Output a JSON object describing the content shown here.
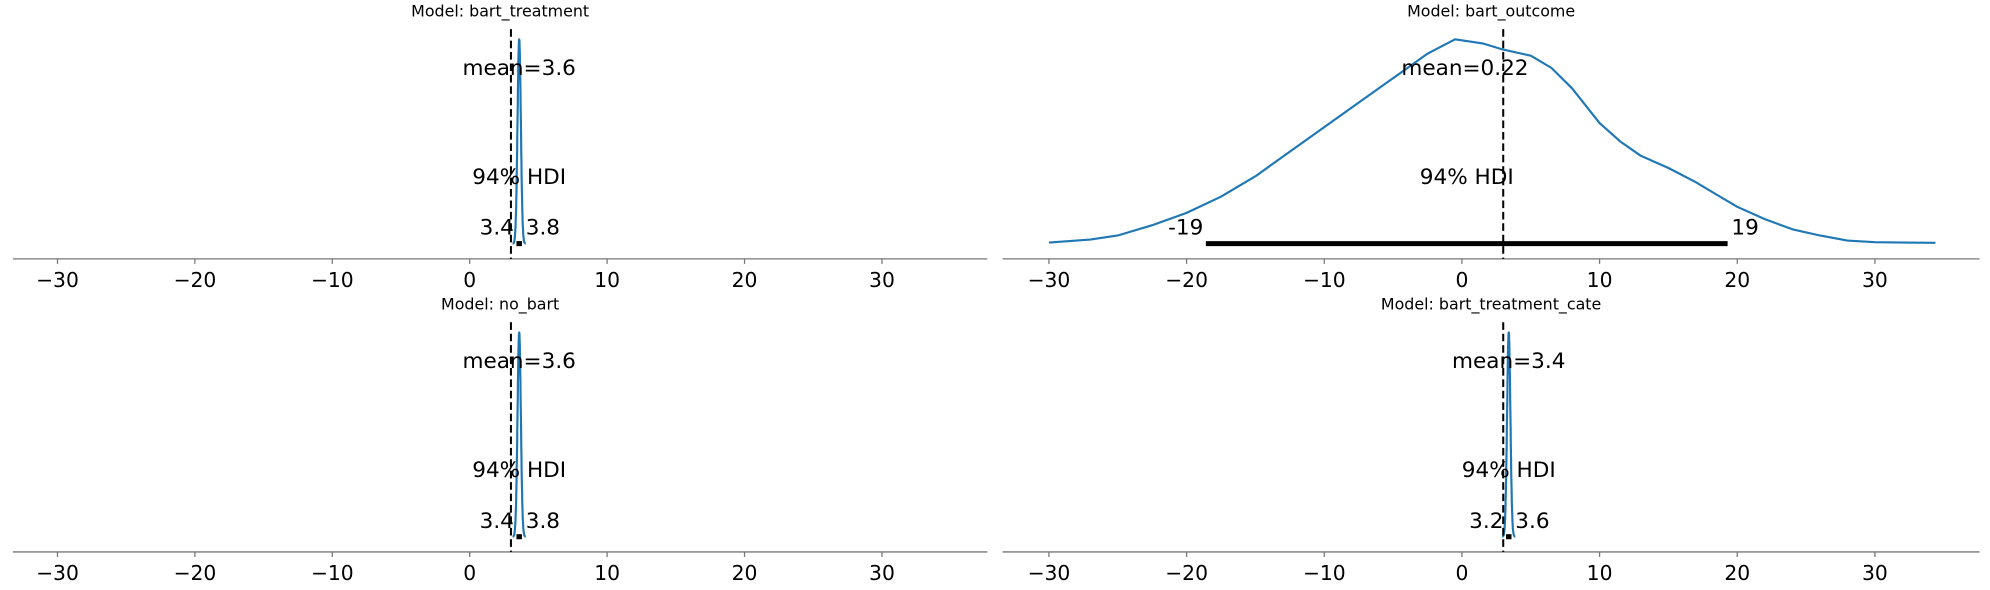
{
  "chart_data": [
    {
      "type": "area",
      "title": "Model: bart_treatment",
      "mean_label": "mean=3.6",
      "hdi_label": "94% HDI",
      "hdi": [
        3.4,
        3.8
      ],
      "hdi_labels": [
        "3.4",
        "3.8"
      ],
      "mean": 3.6,
      "ref_val": 3,
      "kde": {
        "center": 3.6,
        "sd": 0.12
      },
      "xlim": [
        -33,
        38
      ],
      "xticks": [
        -30,
        -20,
        -10,
        0,
        10,
        20,
        30
      ],
      "xtick_labels": [
        "−30",
        "−20",
        "−10",
        "0",
        "10",
        "20",
        "30"
      ],
      "color": "#1f77b4"
    },
    {
      "type": "area",
      "title": "Model: bart_outcome",
      "mean_label": "mean=0.22",
      "hdi_label": "94% HDI",
      "hdi": [
        -18.6,
        19.3
      ],
      "hdi_labels": [
        "-19",
        "19"
      ],
      "mean": 0.22,
      "ref_val": 3,
      "kde": {
        "points": [
          [
            -30,
            0.005
          ],
          [
            -27,
            0.02
          ],
          [
            -25,
            0.04
          ],
          [
            -22.5,
            0.09
          ],
          [
            -20,
            0.15
          ],
          [
            -17.5,
            0.23
          ],
          [
            -15,
            0.33
          ],
          [
            -12.5,
            0.45
          ],
          [
            -10,
            0.57
          ],
          [
            -7.5,
            0.69
          ],
          [
            -5,
            0.81
          ],
          [
            -2.5,
            0.93
          ],
          [
            -0.5,
            1.0
          ],
          [
            1.5,
            0.98
          ],
          [
            3,
            0.95
          ],
          [
            5,
            0.92
          ],
          [
            6.5,
            0.86
          ],
          [
            8,
            0.76
          ],
          [
            10,
            0.59
          ],
          [
            11.5,
            0.5
          ],
          [
            13,
            0.43
          ],
          [
            15,
            0.37
          ],
          [
            17,
            0.3
          ],
          [
            18.5,
            0.24
          ],
          [
            20,
            0.18
          ],
          [
            22,
            0.12
          ],
          [
            24,
            0.07
          ],
          [
            26,
            0.04
          ],
          [
            28,
            0.015
          ],
          [
            30,
            0.007
          ],
          [
            34.4,
            0.004
          ]
        ]
      },
      "xlim": [
        -33,
        38
      ],
      "xticks": [
        -30,
        -20,
        -10,
        0,
        10,
        20,
        30
      ],
      "xtick_labels": [
        "−30",
        "−20",
        "−10",
        "0",
        "10",
        "20",
        "30"
      ],
      "color": "#1f77b4"
    },
    {
      "type": "area",
      "title": "Model: no_bart",
      "mean_label": "mean=3.6",
      "hdi_label": "94% HDI",
      "hdi": [
        3.4,
        3.8
      ],
      "hdi_labels": [
        "3.4",
        "3.8"
      ],
      "mean": 3.6,
      "ref_val": 3,
      "kde": {
        "center": 3.6,
        "sd": 0.12
      },
      "xlim": [
        -33,
        38
      ],
      "xticks": [
        -30,
        -20,
        -10,
        0,
        10,
        20,
        30
      ],
      "xtick_labels": [
        "−30",
        "−20",
        "−10",
        "0",
        "10",
        "20",
        "30"
      ],
      "color": "#1f77b4"
    },
    {
      "type": "area",
      "title": "Model: bart_treatment_cate",
      "mean_label": "mean=3.4",
      "hdi_label": "94% HDI",
      "hdi": [
        3.2,
        3.6
      ],
      "hdi_labels": [
        "3.2",
        "3.6"
      ],
      "mean": 3.4,
      "ref_val": 3,
      "kde": {
        "center": 3.4,
        "sd": 0.12
      },
      "xlim": [
        -33,
        38
      ],
      "xticks": [
        -30,
        -20,
        -10,
        0,
        10,
        20,
        30
      ],
      "xtick_labels": [
        "−30",
        "−20",
        "−10",
        "0",
        "10",
        "20",
        "30"
      ],
      "color": "#1f77b4"
    }
  ]
}
